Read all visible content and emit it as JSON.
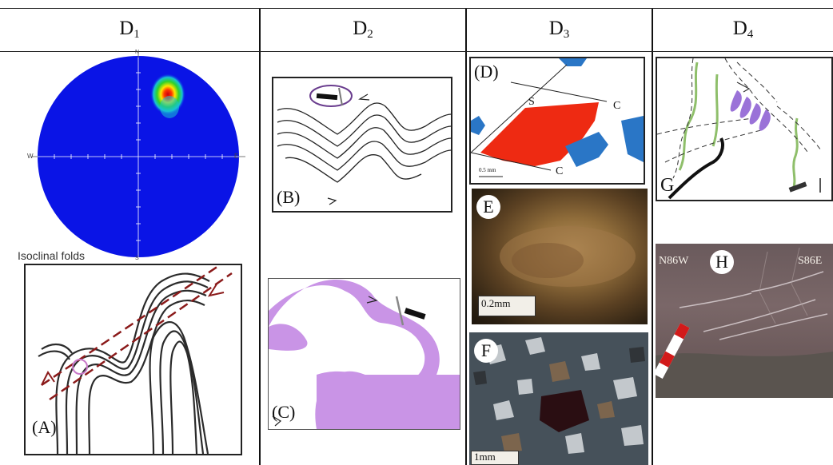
{
  "headers": {
    "d1": {
      "base": "D",
      "sub": "1"
    },
    "d2": {
      "base": "D",
      "sub": "2"
    },
    "d3": {
      "base": "D",
      "sub": "3"
    },
    "d4": {
      "base": "D",
      "sub": "4"
    }
  },
  "stereonet": {
    "north": "N",
    "south": "S",
    "east": "E",
    "west": "W",
    "caption": "Isoclinal folds"
  },
  "panels": {
    "a": "(A)",
    "b": "(B)",
    "c": "(C)",
    "d": "(D)",
    "e": "E",
    "f": "F",
    "g": "G",
    "h": "H"
  },
  "panel_d_labels": {
    "s": "S",
    "c_top": "C",
    "c_bottom": "C",
    "scale": "0.5 mm"
  },
  "panel_e_scale": "0.2mm",
  "panel_f_scale": "1mm",
  "panel_h_labels": {
    "left": "N86W",
    "right": "S86E"
  },
  "colors": {
    "stereonet_blue": "#0a14e6",
    "violet_fill": "#c994e6",
    "red_clast": "#ee2a12",
    "blue_clast": "#2a76c6",
    "green_vein": "#8fbf6b",
    "violet_vein": "#9a72d8"
  }
}
